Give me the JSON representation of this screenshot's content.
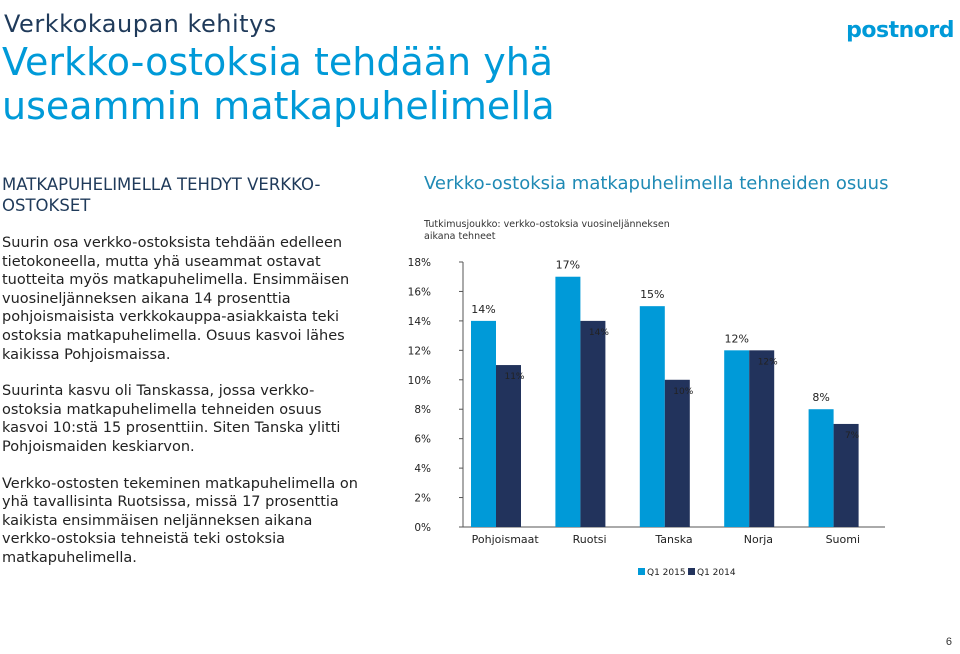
{
  "header": {
    "subtitle": "Verkkokaupan kehitys",
    "title": "Verkko-ostoksia tehdään yhä useammin matkapuhelimella",
    "logo_text": "postnord"
  },
  "left_column": {
    "heading": "MATKAPUHELIMELLA TEHDYT VERKKO-OSTOKSET",
    "paragraphs": [
      "Suurin osa verkko-ostoksista tehdään edelleen tietokoneella, mutta yhä useammat ostavat tuotteita myös matkapuhelimella. Ensimmäisen vuosineljänneksen aikana 14 prosenttia pohjoismaisista verkkokauppa-asiakkaista teki ostoksia matkapuhelimella. Osuus kasvoi lähes kaikissa Pohjoismaissa.",
      "Suurinta kasvu oli Tanskassa, jossa verkko-ostoksia matkapuhelimella tehneiden osuus kasvoi 10:stä 15 prosenttiin. Siten Tanska ylitti Pohjoismaiden keskiarvon.",
      "Verkko-ostosten tekeminen matkapuhelimella on yhä tavallisinta Ruotsissa, missä 17 prosenttia kaikista ensimmäisen neljänneksen aikana verkko-ostoksia tehneistä teki ostoksia matkapuhelimella."
    ]
  },
  "page_number": "6",
  "chart_data": {
    "type": "bar",
    "title": "Verkko-ostoksia matkapuhelimella tehneiden osuus",
    "subtitle": "Tutkimusjoukko: verkko-ostoksia vuosineljänneksen aikana tehneet",
    "categories": [
      "Pohjoismaat",
      "Ruotsi",
      "Tanska",
      "Norja",
      "Suomi"
    ],
    "series": [
      {
        "name": "Q1 2015",
        "values": [
          14,
          17,
          15,
          12,
          8
        ],
        "color": "#009ad8",
        "labels": [
          "14%",
          "17%",
          "15%",
          "12%",
          "8%"
        ]
      },
      {
        "name": "Q1 2014",
        "values": [
          11,
          14,
          10,
          12,
          7
        ],
        "color": "#22335c",
        "labels": [
          "11%",
          "14%",
          "10%",
          "12%",
          "7%"
        ]
      }
    ],
    "ylim": [
      0,
      18
    ],
    "yticks": [
      "0%",
      "2%",
      "4%",
      "6%",
      "8%",
      "10%",
      "12%",
      "14%",
      "16%",
      "18%"
    ],
    "grid": false,
    "legend_position": "bottom"
  }
}
